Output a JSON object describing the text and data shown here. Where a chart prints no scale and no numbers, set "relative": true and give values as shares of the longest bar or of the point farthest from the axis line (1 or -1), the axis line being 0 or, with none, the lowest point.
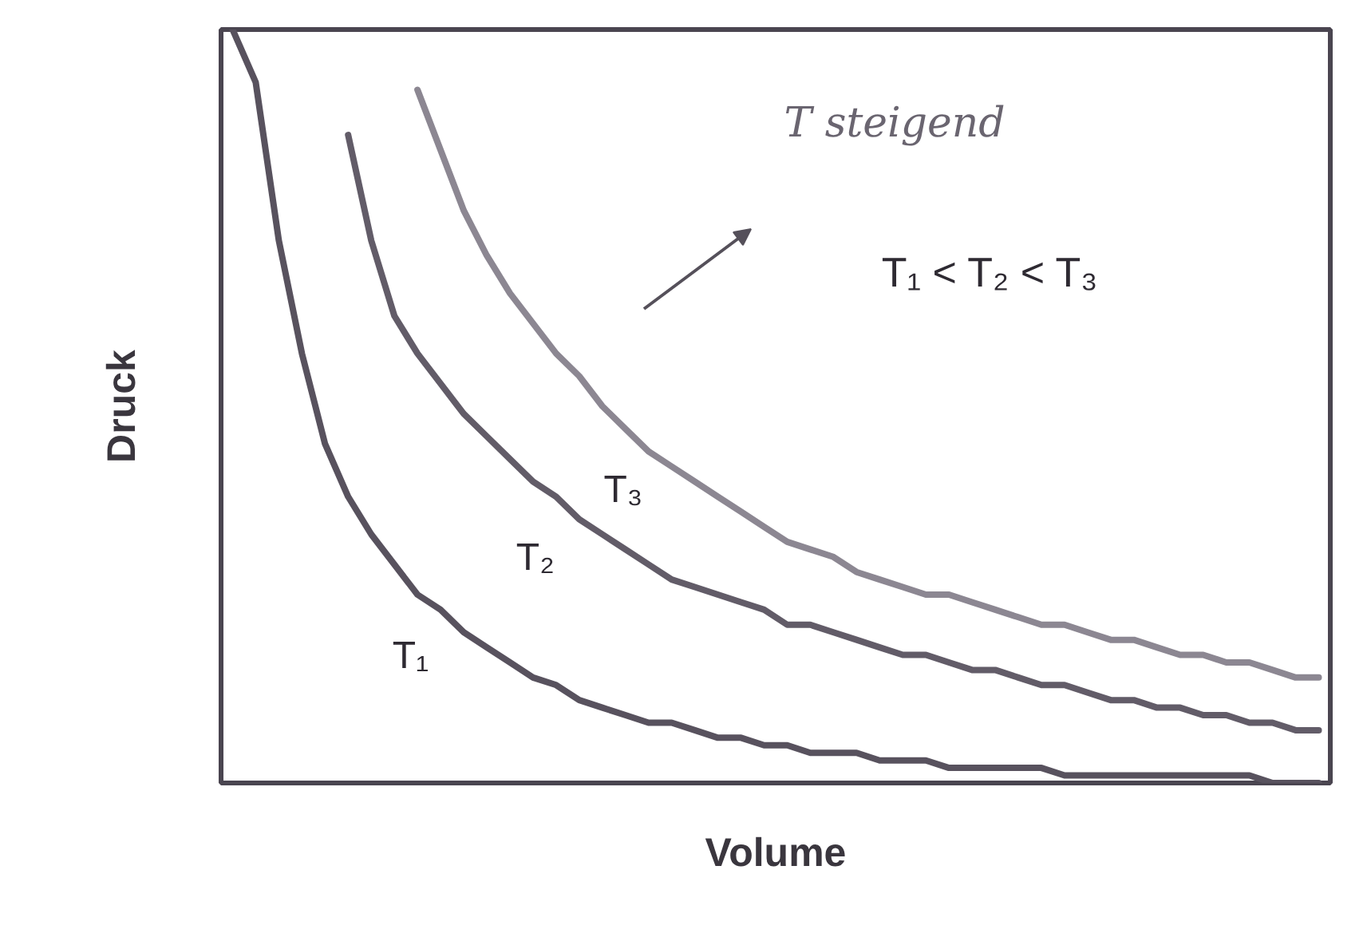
{
  "chart_data": {
    "type": "line",
    "relative": true,
    "xlabel": "Volume",
    "ylabel": "Druck",
    "annotations": [
      "T steigend",
      "T₁ < T₂ < T₃"
    ],
    "categories": [
      null,
      null,
      null,
      null,
      null,
      null,
      null,
      null,
      null,
      null,
      null,
      null,
      null,
      null,
      null,
      null,
      null,
      null,
      null,
      null,
      null,
      null,
      null,
      null,
      null,
      null,
      null,
      null,
      null,
      null,
      null,
      null,
      null,
      null,
      null,
      null,
      null,
      null,
      null,
      null,
      null,
      null,
      null,
      null,
      null,
      null,
      null,
      null
    ],
    "series": [
      {
        "name": "T₁",
        "color": "#58525e",
        "values": [
          1.0,
          0.93,
          0.72,
          0.57,
          0.45,
          0.38,
          0.33,
          0.29,
          0.25,
          0.23,
          0.2,
          0.18,
          0.16,
          0.14,
          0.13,
          0.11,
          0.1,
          0.09,
          0.08,
          0.08,
          0.07,
          0.06,
          0.06,
          0.05,
          0.05,
          0.04,
          0.04,
          0.04,
          0.03,
          0.03,
          0.03,
          0.02,
          0.02,
          0.02,
          0.02,
          0.02,
          0.01,
          0.01,
          0.01,
          0.01,
          0.01,
          0.01,
          0.01,
          0.01,
          0.01,
          0.0,
          0.0,
          0.0
        ]
      },
      {
        "name": "T₂",
        "color": "#625c68",
        "values": [
          null,
          null,
          null,
          null,
          null,
          0.86,
          0.72,
          0.62,
          0.57,
          0.53,
          0.49,
          0.46,
          0.43,
          0.4,
          0.38,
          0.35,
          0.33,
          0.31,
          0.29,
          0.27,
          0.26,
          0.25,
          0.24,
          0.23,
          0.21,
          0.21,
          0.2,
          0.19,
          0.18,
          0.17,
          0.17,
          0.16,
          0.15,
          0.15,
          0.14,
          0.13,
          0.13,
          0.12,
          0.11,
          0.11,
          0.1,
          0.1,
          0.09,
          0.09,
          0.08,
          0.08,
          0.07,
          0.07
        ]
      },
      {
        "name": "T₃",
        "color": "#8c8792",
        "values": [
          null,
          null,
          null,
          null,
          null,
          null,
          null,
          null,
          0.92,
          0.84,
          0.76,
          0.7,
          0.65,
          0.61,
          0.57,
          0.54,
          0.5,
          0.47,
          0.44,
          0.42,
          0.4,
          0.38,
          0.36,
          0.34,
          0.32,
          0.31,
          0.3,
          0.28,
          0.27,
          0.26,
          0.25,
          0.25,
          0.24,
          0.23,
          0.22,
          0.21,
          0.21,
          0.2,
          0.19,
          0.19,
          0.18,
          0.17,
          0.17,
          0.16,
          0.16,
          0.15,
          0.14,
          0.14
        ]
      }
    ]
  }
}
